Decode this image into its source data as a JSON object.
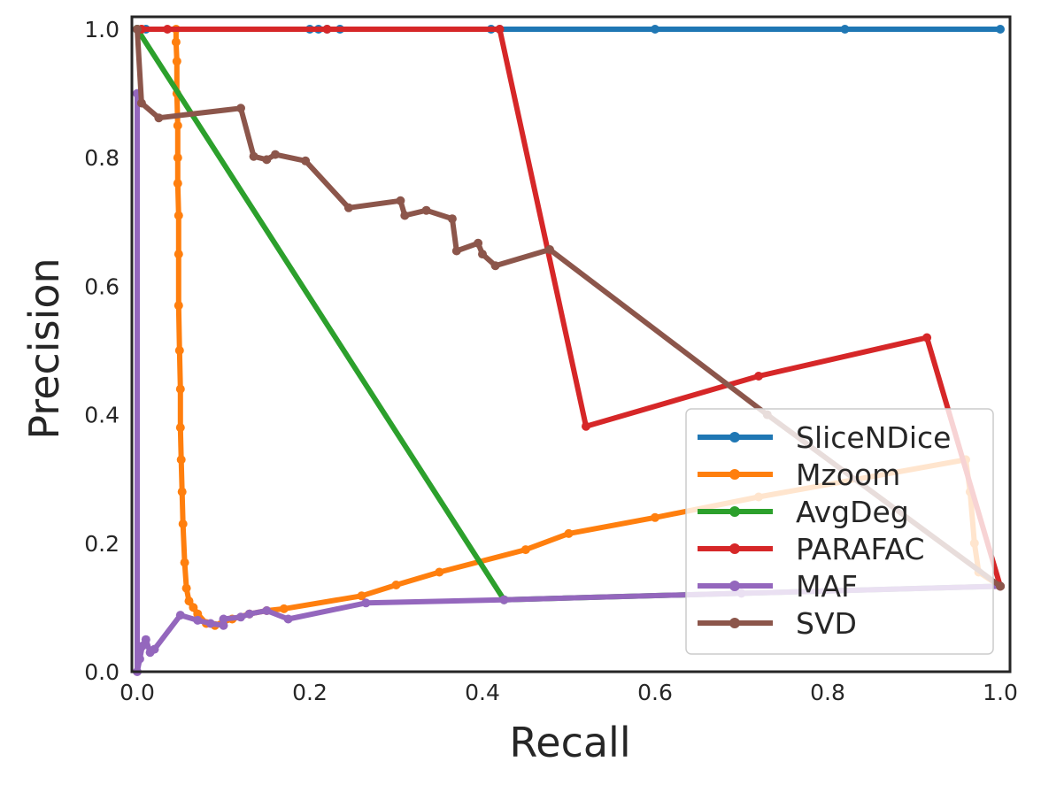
{
  "chart_data": {
    "type": "line",
    "title": "",
    "xlabel": "Recall",
    "ylabel": "Precision",
    "xlim": [
      0.0,
      1.0
    ],
    "ylim": [
      0.0,
      1.0
    ],
    "xticks": [
      "0.0",
      "0.2",
      "0.4",
      "0.6",
      "0.8",
      "1.0"
    ],
    "yticks": [
      "0.0",
      "0.2",
      "0.4",
      "0.6",
      "0.8",
      "1.0"
    ],
    "grid": false,
    "legend_position": "bottom-right",
    "series": [
      {
        "name": "SliceNDice",
        "color": "#1f77b4",
        "points": [
          [
            0.0,
            1.0
          ],
          [
            0.01,
            1.0
          ],
          [
            0.2,
            1.0
          ],
          [
            0.21,
            1.0
          ],
          [
            0.22,
            1.0
          ],
          [
            0.235,
            1.0
          ],
          [
            0.41,
            1.0
          ],
          [
            0.42,
            1.0
          ],
          [
            0.6,
            1.0
          ],
          [
            0.82,
            1.0
          ],
          [
            1.0,
            1.0
          ]
        ]
      },
      {
        "name": "Mzoom",
        "color": "#ff7f0e",
        "points": [
          [
            0.005,
            1.0
          ],
          [
            0.045,
            1.0
          ],
          [
            0.045,
            0.98
          ],
          [
            0.046,
            0.95
          ],
          [
            0.046,
            0.9
          ],
          [
            0.047,
            0.85
          ],
          [
            0.047,
            0.8
          ],
          [
            0.047,
            0.76
          ],
          [
            0.048,
            0.71
          ],
          [
            0.048,
            0.65
          ],
          [
            0.048,
            0.57
          ],
          [
            0.049,
            0.5
          ],
          [
            0.05,
            0.44
          ],
          [
            0.05,
            0.38
          ],
          [
            0.051,
            0.33
          ],
          [
            0.052,
            0.28
          ],
          [
            0.053,
            0.23
          ],
          [
            0.055,
            0.17
          ],
          [
            0.057,
            0.13
          ],
          [
            0.06,
            0.11
          ],
          [
            0.065,
            0.1
          ],
          [
            0.07,
            0.09
          ],
          [
            0.08,
            0.075
          ],
          [
            0.09,
            0.072
          ],
          [
            0.1,
            0.078
          ],
          [
            0.11,
            0.082
          ],
          [
            0.13,
            0.09
          ],
          [
            0.15,
            0.095
          ],
          [
            0.17,
            0.098
          ],
          [
            0.26,
            0.118
          ],
          [
            0.3,
            0.135
          ],
          [
            0.35,
            0.155
          ],
          [
            0.45,
            0.19
          ],
          [
            0.5,
            0.215
          ],
          [
            0.6,
            0.24
          ],
          [
            0.72,
            0.272
          ],
          [
            0.96,
            0.33
          ],
          [
            0.965,
            0.28
          ],
          [
            0.97,
            0.2
          ],
          [
            0.975,
            0.155
          ],
          [
            1.0,
            0.133
          ]
        ]
      },
      {
        "name": "AvgDeg",
        "color": "#2ca02c",
        "points": [
          [
            0.0,
            1.0
          ],
          [
            0.425,
            0.112
          ],
          [
            1.0,
            0.133
          ]
        ]
      },
      {
        "name": "PARAFAC",
        "color": "#d62728",
        "points": [
          [
            0.005,
            1.0
          ],
          [
            0.035,
            1.0
          ],
          [
            0.22,
            1.0
          ],
          [
            0.42,
            1.0
          ],
          [
            0.52,
            0.382
          ],
          [
            0.72,
            0.46
          ],
          [
            0.915,
            0.52
          ],
          [
            1.0,
            0.133
          ]
        ]
      },
      {
        "name": "MAF",
        "color": "#9467bd",
        "points": [
          [
            0.0,
            0.9
          ],
          [
            0.0,
            0.0
          ],
          [
            0.003,
            0.02
          ],
          [
            0.006,
            0.04
          ],
          [
            0.01,
            0.05
          ],
          [
            0.015,
            0.03
          ],
          [
            0.02,
            0.035
          ],
          [
            0.05,
            0.088
          ],
          [
            0.07,
            0.08
          ],
          [
            0.085,
            0.075
          ],
          [
            0.1,
            0.072
          ],
          [
            0.1,
            0.082
          ],
          [
            0.12,
            0.085
          ],
          [
            0.13,
            0.09
          ],
          [
            0.15,
            0.095
          ],
          [
            0.175,
            0.082
          ],
          [
            0.265,
            0.107
          ],
          [
            0.425,
            0.112
          ],
          [
            0.7,
            0.122
          ],
          [
            1.0,
            0.133
          ]
        ]
      },
      {
        "name": "SVD",
        "color": "#8c564b",
        "points": [
          [
            0.0,
            1.0
          ],
          [
            0.005,
            0.885
          ],
          [
            0.025,
            0.862
          ],
          [
            0.12,
            0.877
          ],
          [
            0.135,
            0.802
          ],
          [
            0.15,
            0.797
          ],
          [
            0.16,
            0.805
          ],
          [
            0.195,
            0.795
          ],
          [
            0.245,
            0.722
          ],
          [
            0.305,
            0.733
          ],
          [
            0.31,
            0.71
          ],
          [
            0.335,
            0.718
          ],
          [
            0.365,
            0.705
          ],
          [
            0.37,
            0.655
          ],
          [
            0.395,
            0.667
          ],
          [
            0.4,
            0.65
          ],
          [
            0.415,
            0.632
          ],
          [
            0.478,
            0.657
          ],
          [
            0.73,
            0.4
          ],
          [
            1.0,
            0.133
          ]
        ]
      }
    ]
  }
}
